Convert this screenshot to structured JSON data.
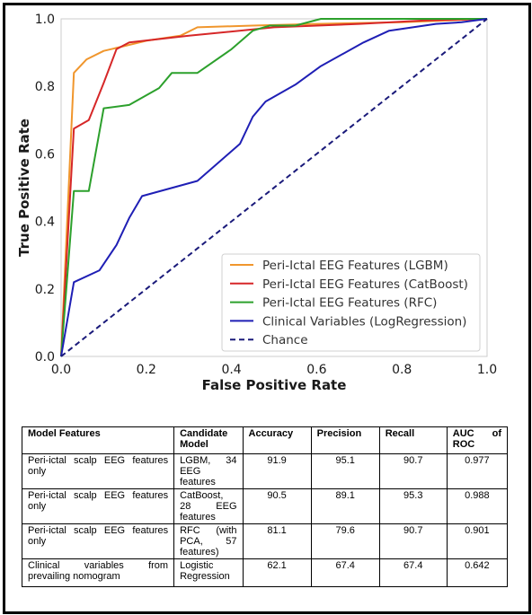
{
  "chart_data": {
    "type": "line",
    "xlabel": "False Positive Rate",
    "ylabel": "True Positive Rate",
    "xlim": [
      0,
      1
    ],
    "ylim": [
      0,
      1
    ],
    "xticks": [
      "0.0",
      "0.2",
      "0.4",
      "0.6",
      "0.8",
      "1.0"
    ],
    "yticks": [
      "0.0",
      "0.2",
      "0.4",
      "0.6",
      "0.8",
      "1.0"
    ],
    "grid": false,
    "legend_position": "lower-right",
    "series": [
      {
        "name": "Peri-Ictal EEG Features (LGBM)",
        "color": "#f0962d",
        "dash": false,
        "points": [
          [
            0,
            0
          ],
          [
            0.03,
            0.84
          ],
          [
            0.06,
            0.88
          ],
          [
            0.1,
            0.905
          ],
          [
            0.15,
            0.92
          ],
          [
            0.2,
            0.935
          ],
          [
            0.28,
            0.95
          ],
          [
            0.32,
            0.975
          ],
          [
            0.45,
            0.98
          ],
          [
            0.6,
            0.985
          ],
          [
            0.8,
            0.99
          ],
          [
            1,
            1
          ]
        ]
      },
      {
        "name": "Peri-Ictal EEG Features (CatBoost)",
        "color": "#d62728",
        "dash": false,
        "points": [
          [
            0,
            0
          ],
          [
            0.03,
            0.675
          ],
          [
            0.065,
            0.7
          ],
          [
            0.1,
            0.81
          ],
          [
            0.13,
            0.91
          ],
          [
            0.16,
            0.93
          ],
          [
            0.3,
            0.95
          ],
          [
            0.5,
            0.975
          ],
          [
            0.7,
            0.985
          ],
          [
            0.85,
            0.995
          ],
          [
            1,
            1
          ]
        ]
      },
      {
        "name": "Peri-Ictal EEG Features (RFC)",
        "color": "#2ca02c",
        "dash": false,
        "points": [
          [
            0,
            0
          ],
          [
            0.03,
            0.49
          ],
          [
            0.065,
            0.49
          ],
          [
            0.1,
            0.735
          ],
          [
            0.16,
            0.745
          ],
          [
            0.23,
            0.795
          ],
          [
            0.26,
            0.84
          ],
          [
            0.32,
            0.84
          ],
          [
            0.4,
            0.91
          ],
          [
            0.45,
            0.965
          ],
          [
            0.49,
            0.98
          ],
          [
            0.55,
            0.98
          ],
          [
            0.61,
            1
          ],
          [
            0.8,
            1
          ],
          [
            1,
            1
          ]
        ]
      },
      {
        "name": "Clinical Variables (LogRegression)",
        "color": "#1f1fb5",
        "dash": false,
        "points": [
          [
            0,
            0
          ],
          [
            0.03,
            0.22
          ],
          [
            0.09,
            0.255
          ],
          [
            0.13,
            0.33
          ],
          [
            0.16,
            0.41
          ],
          [
            0.19,
            0.475
          ],
          [
            0.32,
            0.52
          ],
          [
            0.42,
            0.63
          ],
          [
            0.45,
            0.71
          ],
          [
            0.48,
            0.755
          ],
          [
            0.55,
            0.805
          ],
          [
            0.61,
            0.86
          ],
          [
            0.71,
            0.93
          ],
          [
            0.77,
            0.965
          ],
          [
            0.88,
            0.985
          ],
          [
            0.94,
            0.99
          ],
          [
            1,
            1
          ]
        ]
      },
      {
        "name": "Chance",
        "color": "#1a1a7a",
        "dash": true,
        "points": [
          [
            0,
            0
          ],
          [
            1,
            1
          ]
        ]
      }
    ]
  },
  "table": {
    "headers": [
      "Model Features",
      "Candidate Model",
      "Accuracy",
      "Precision",
      "Recall",
      "AUC of ROC"
    ],
    "rows": [
      [
        "Peri-ictal scalp EEG features only",
        "LGBM, 34 EEG features",
        "91.9",
        "95.1",
        "90.7",
        "0.977"
      ],
      [
        "Peri-ictal scalp EEG features only",
        "CatBoost, 28 EEG features",
        "90.5",
        "89.1",
        "95.3",
        "0.988"
      ],
      [
        "Peri-ictal scalp EEG features only",
        "RFC (with PCA, 57 features)",
        "81.1",
        "79.6",
        "90.7",
        "0.901"
      ],
      [
        "Clinical variables from prevailing nomogram",
        "Logistic Regression",
        "62.1",
        "67.4",
        "67.4",
        "0.642"
      ]
    ]
  }
}
